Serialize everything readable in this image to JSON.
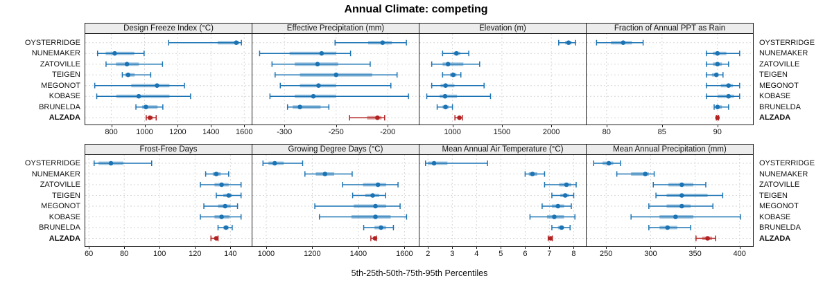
{
  "title": "Annual Climate: competing",
  "caption": "5th-25th-50th-75th-95th Percentiles",
  "sites": [
    "OYSTERRIDGE",
    "NUNEMAKER",
    "ZATOVILLE",
    "TEIGEN",
    "MEGONOT",
    "KOBASE",
    "BRUNELDA",
    "ALZADA"
  ],
  "highlight_site": "ALZADA",
  "colors": {
    "series": "#1b73b3",
    "highlight": "#b22222",
    "header_bg": "#ececec",
    "grid": "#d6d6d6",
    "border": "#1a1a1a",
    "text": "#111111"
  },
  "chart_data": {
    "type": "dotplot",
    "subtype": "percentile-whisker-trellis",
    "percentiles": [
      "5th",
      "25th",
      "50th",
      "75th",
      "95th"
    ],
    "layout": {
      "rows": 2,
      "cols": 4
    },
    "panels": [
      {
        "title": "Design Freeze Index (°C)",
        "xlim": [
          643,
          1645
        ],
        "ticks": [
          800,
          1000,
          1200,
          1400,
          1600
        ],
        "values": {
          "OYSTERRIDGE": [
            1145,
            1440,
            1552,
            1570,
            1583
          ],
          "NUNEMAKER": [
            717,
            766,
            820,
            938,
            997
          ],
          "ZATOVILLE": [
            768,
            828,
            894,
            966,
            1108
          ],
          "TEIGEN": [
            866,
            884,
            901,
            940,
            1037
          ],
          "MEGONOT": [
            700,
            920,
            1075,
            1150,
            1240
          ],
          "KOBASE": [
            712,
            830,
            965,
            1150,
            1277
          ],
          "BRUNELDA": [
            948,
            985,
            1008,
            1078,
            1110
          ],
          "ALZADA": [
            1010,
            1021,
            1032,
            1051,
            1070
          ]
        }
      },
      {
        "title": "Effective Precipitation (mm)",
        "xlim": [
          -331,
          -170
        ],
        "ticks": [
          -300,
          -250,
          -200
        ],
        "values": {
          "OYSTERRIDGE": [
            -251,
            -219,
            -205,
            -196,
            -182
          ],
          "NUNEMAKER": [
            -324,
            -295,
            -264,
            -250,
            -236
          ],
          "ZATOVILLE": [
            -312,
            -290,
            -268,
            -248,
            -217
          ],
          "TEIGEN": [
            -309,
            -285,
            -250,
            -215,
            -191
          ],
          "MEGONOT": [
            -304,
            -285,
            -267,
            -250,
            -197
          ],
          "KOBASE": [
            -314,
            -290,
            -272,
            -250,
            -180
          ],
          "BRUNELDA": [
            -297,
            -292,
            -285,
            -265,
            -257
          ],
          "ALZADA": [
            -237,
            -220,
            -210,
            -206,
            -203
          ]
        }
      },
      {
        "title": "Elevation (m)",
        "xlim": [
          666,
          2350
        ],
        "ticks": [
          1000,
          1500,
          2000
        ],
        "values": {
          "OYSTERRIDGE": [
            2075,
            2140,
            2175,
            2205,
            2245
          ],
          "NUNEMAKER": [
            900,
            1010,
            1040,
            1080,
            1165
          ],
          "ZATOVILLE": [
            790,
            900,
            955,
            1110,
            1275
          ],
          "TEIGEN": [
            900,
            975,
            1007,
            1040,
            1085
          ],
          "MEGONOT": [
            790,
            880,
            930,
            1020,
            1320
          ],
          "KOBASE": [
            740,
            870,
            925,
            1045,
            1385
          ],
          "BRUNELDA": [
            845,
            900,
            930,
            960,
            1000
          ],
          "ALZADA": [
            1025,
            1055,
            1070,
            1085,
            1100
          ]
        }
      },
      {
        "title": "Fraction of Annual PPT as Rain",
        "xlim": [
          78.2,
          93.2
        ],
        "ticks": [
          80,
          85,
          90
        ],
        "values": {
          "OYSTERRIDGE": [
            79.1,
            80.4,
            81.5,
            82.3,
            83.3
          ],
          "NUNEMAKER": [
            89.0,
            89.6,
            90.0,
            90.8,
            92.0
          ],
          "ZATOVILLE": [
            89.0,
            89.6,
            90.0,
            90.4,
            91.0
          ],
          "TEIGEN": [
            89.0,
            89.5,
            89.9,
            90.1,
            90.5
          ],
          "MEGONOT": [
            89.0,
            90.3,
            91.0,
            91.4,
            92.0
          ],
          "KOBASE": [
            89.0,
            90.0,
            91.0,
            91.5,
            92.0
          ],
          "BRUNELDA": [
            89.7,
            89.9,
            90.0,
            90.4,
            91.0
          ],
          "ALZADA": [
            89.9,
            89.97,
            90.0,
            90.03,
            90.1
          ]
        }
      },
      {
        "title": "Frost-Free Days",
        "xlim": [
          58,
          152
        ],
        "ticks": [
          60,
          80,
          100,
          120,
          140
        ],
        "values": {
          "OYSTERRIDGE": [
            63,
            65.5,
            72.5,
            79.5,
            95.5
          ],
          "NUNEMAKER": [
            126,
            130,
            132,
            134.5,
            139
          ],
          "ZATOVILLE": [
            123,
            131,
            135,
            139,
            146
          ],
          "TEIGEN": [
            132,
            136,
            139,
            141,
            146
          ],
          "MEGONOT": [
            125,
            133,
            137,
            140,
            144
          ],
          "KOBASE": [
            123,
            131,
            135,
            139.5,
            146
          ],
          "BRUNELDA": [
            133,
            136,
            137.5,
            139,
            141
          ],
          "ALZADA": [
            129,
            131,
            132,
            132.5,
            133
          ]
        }
      },
      {
        "title": "Growing Degree Days (°C)",
        "xlim": [
          940,
          1662
        ],
        "ticks": [
          1000,
          1200,
          1400,
          1600
        ],
        "values": {
          "OYSTERRIDGE": [
            986,
            1010,
            1037,
            1076,
            1158
          ],
          "NUNEMAKER": [
            1168,
            1215,
            1255,
            1295,
            1373
          ],
          "ZATOVILLE": [
            1331,
            1420,
            1485,
            1520,
            1572
          ],
          "TEIGEN": [
            1375,
            1430,
            1462,
            1490,
            1518
          ],
          "MEGONOT": [
            1211,
            1380,
            1474,
            1520,
            1581
          ],
          "KOBASE": [
            1231,
            1370,
            1474,
            1540,
            1609
          ],
          "BRUNELDA": [
            1423,
            1470,
            1498,
            1520,
            1552
          ],
          "ALZADA": [
            1454,
            1465,
            1472,
            1475,
            1478
          ]
        }
      },
      {
        "title": "Mean Annual Air Temperature (°C)",
        "xlim": [
          1.65,
          8.5
        ],
        "ticks": [
          2,
          3,
          4,
          5,
          6,
          7,
          8
        ],
        "values": {
          "OYSTERRIDGE": [
            1.9,
            2.0,
            2.25,
            2.8,
            4.45
          ],
          "NUNEMAKER": [
            6.0,
            6.15,
            6.3,
            6.5,
            6.8
          ],
          "ZATOVILLE": [
            6.8,
            7.4,
            7.7,
            7.9,
            8.1
          ],
          "TEIGEN": [
            7.1,
            7.45,
            7.65,
            7.8,
            8.0
          ],
          "MEGONOT": [
            6.7,
            7.1,
            7.35,
            7.6,
            7.9
          ],
          "KOBASE": [
            6.2,
            6.9,
            7.2,
            7.6,
            8.05
          ],
          "BRUNELDA": [
            7.1,
            7.35,
            7.5,
            7.6,
            7.85
          ],
          "ALZADA": [
            6.95,
            7.0,
            7.05,
            7.1,
            7.12
          ]
        }
      },
      {
        "title": "Mean Annual Precipitation (mm)",
        "xlim": [
          228,
          415
        ],
        "ticks": [
          250,
          300,
          350,
          400
        ],
        "values": {
          "OYSTERRIDGE": [
            236,
            246,
            253,
            258,
            266
          ],
          "NUNEMAKER": [
            262,
            278,
            294,
            298,
            304
          ],
          "ZATOVILLE": [
            303,
            320,
            335,
            348,
            362
          ],
          "TEIGEN": [
            306,
            318,
            335,
            364,
            381
          ],
          "MEGONOT": [
            298,
            318,
            335,
            345,
            370
          ],
          "KOBASE": [
            278,
            310,
            328,
            348,
            401
          ],
          "BRUNELDA": [
            298,
            310,
            319,
            330,
            345
          ],
          "ALZADA": [
            351,
            358,
            364,
            369,
            373
          ]
        }
      }
    ]
  }
}
